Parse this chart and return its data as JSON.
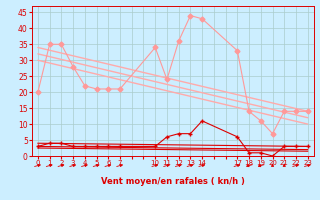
{
  "xlabel": "Vent moyen/en rafales ( kn/h )",
  "background_color": "#cceeff",
  "grid_color": "#aacccc",
  "ylim": [
    0,
    47
  ],
  "yticks": [
    0,
    5,
    10,
    15,
    20,
    25,
    30,
    35,
    40,
    45
  ],
  "x_positions": [
    0,
    1,
    2,
    3,
    4,
    5,
    6,
    7,
    8,
    9,
    10,
    11,
    12,
    13,
    14,
    15,
    16,
    17,
    18,
    19,
    20,
    21,
    22,
    23
  ],
  "x_labels": [
    "0",
    "1",
    "2",
    "3",
    "4",
    "5",
    "6",
    "7",
    "",
    "",
    "10",
    "11",
    "12",
    "13",
    "14",
    "",
    "",
    "17",
    "18",
    "19",
    "20",
    "21",
    "22",
    "23"
  ],
  "series_rafales": {
    "color": "#ff9999",
    "lw": 0.8,
    "marker": "D",
    "markersize": 2.5,
    "xi": [
      0,
      1,
      2,
      3,
      4,
      5,
      6,
      7,
      10,
      11,
      12,
      13,
      14,
      17,
      18,
      19,
      20,
      21,
      22,
      23
    ],
    "y": [
      20,
      35,
      35,
      28,
      22,
      21,
      21,
      21,
      34,
      24,
      36,
      44,
      43,
      33,
      14,
      11,
      7,
      14,
      14,
      14
    ]
  },
  "series_trend1": {
    "color": "#ffaaaa",
    "lw": 1.0,
    "xi": [
      0,
      23
    ],
    "y": [
      34,
      14
    ]
  },
  "series_trend2": {
    "color": "#ffaaaa",
    "lw": 1.0,
    "xi": [
      0,
      23
    ],
    "y": [
      32,
      12
    ]
  },
  "series_trend3": {
    "color": "#ffaaaa",
    "lw": 1.0,
    "xi": [
      0,
      23
    ],
    "y": [
      30,
      10
    ]
  },
  "series_moyen": {
    "color": "#dd0000",
    "lw": 0.8,
    "marker": "+",
    "markersize": 3.5,
    "xi": [
      0,
      1,
      2,
      3,
      4,
      5,
      6,
      7,
      10,
      11,
      12,
      13,
      14,
      17,
      18,
      19,
      20,
      21,
      22,
      23
    ],
    "y": [
      3,
      4,
      4,
      3,
      3,
      3,
      3,
      3,
      3,
      6,
      7,
      7,
      11,
      6,
      1,
      1,
      0,
      3,
      3,
      3
    ]
  },
  "series_trend_low1": {
    "color": "#dd0000",
    "lw": 0.8,
    "xi": [
      0,
      23
    ],
    "y": [
      4,
      3
    ]
  },
  "series_trend_low2": {
    "color": "#dd0000",
    "lw": 0.8,
    "xi": [
      0,
      23
    ],
    "y": [
      3,
      2
    ]
  },
  "series_trend_low3": {
    "color": "#dd0000",
    "lw": 0.8,
    "xi": [
      0,
      23
    ],
    "y": [
      2.5,
      1.5
    ]
  },
  "arrows": {
    "color": "#dd0000",
    "xi": [
      0,
      1,
      2,
      3,
      4,
      5,
      6,
      7,
      10,
      11,
      12,
      13,
      14,
      17,
      18,
      19,
      20,
      21,
      22,
      23
    ],
    "angles": [
      45,
      45,
      45,
      45,
      45,
      45,
      45,
      45,
      45,
      45,
      45,
      45,
      45,
      45,
      225,
      225,
      90,
      90,
      45,
      45
    ]
  }
}
